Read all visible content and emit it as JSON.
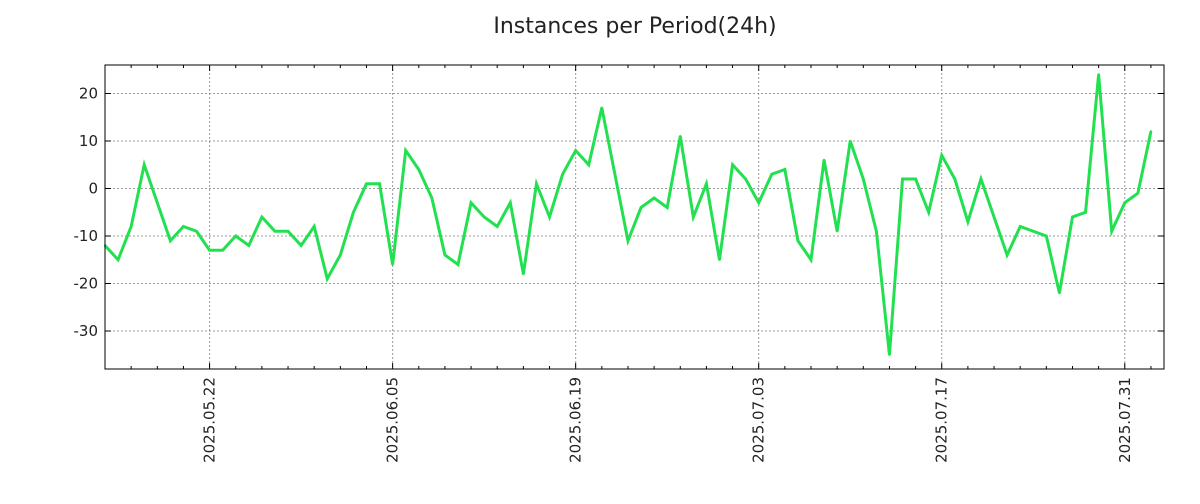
{
  "chart_data": {
    "type": "line",
    "title": "Instances per Period(24h)",
    "xlabel": "",
    "ylabel": "",
    "ylim": [
      -38,
      26
    ],
    "yticks": [
      -30,
      -20,
      -10,
      0,
      10,
      20
    ],
    "ytick_labels": [
      "-30",
      "-20",
      "-10",
      "0",
      "10",
      "20"
    ],
    "xlim": [
      0,
      81
    ],
    "xticks": [
      8,
      22,
      36,
      50,
      64,
      78
    ],
    "xtick_labels": [
      "2025.05.22",
      "2025.06.05",
      "2025.06.19",
      "2025.07.03",
      "2025.07.17",
      "2025.07.31"
    ],
    "grid": true,
    "line_color": "#22e050",
    "series": [
      {
        "name": "Instances",
        "x": [
          0,
          1,
          2,
          3,
          4,
          5,
          6,
          7,
          8,
          9,
          10,
          11,
          12,
          13,
          14,
          15,
          16,
          17,
          18,
          19,
          20,
          21,
          22,
          23,
          24,
          25,
          26,
          27,
          28,
          29,
          30,
          31,
          32,
          33,
          34,
          35,
          36,
          37,
          38,
          39,
          40,
          41,
          42,
          43,
          44,
          45,
          46,
          47,
          48,
          49,
          50,
          51,
          52,
          53,
          54,
          55,
          56,
          57,
          58,
          59,
          60,
          61,
          62,
          63,
          64,
          65,
          66,
          67,
          68,
          69,
          70,
          71,
          72,
          73,
          74,
          75,
          76,
          77,
          78,
          79,
          80
        ],
        "values": [
          -12,
          -15,
          -8,
          5,
          -3,
          -11,
          -8,
          -9,
          -13,
          -13,
          -10,
          -12,
          -6,
          -9,
          -9,
          -12,
          -8,
          -19,
          -14,
          -5,
          1,
          1,
          -16,
          8,
          4,
          -2,
          -14,
          -16,
          -3,
          -6,
          -8,
          -3,
          -18,
          1,
          -6,
          3,
          8,
          5,
          17,
          3,
          -11,
          -4,
          -2,
          -4,
          11,
          -6,
          1,
          -15,
          5,
          2,
          -3,
          3,
          4,
          -11,
          -15,
          6,
          -9,
          10,
          2,
          -9,
          -35,
          2,
          2,
          -5,
          7,
          2,
          -7,
          2,
          -6,
          -14,
          -8,
          -9,
          -10,
          -22,
          -6,
          -5,
          24,
          -9,
          -3,
          -1,
          12
        ]
      }
    ]
  }
}
